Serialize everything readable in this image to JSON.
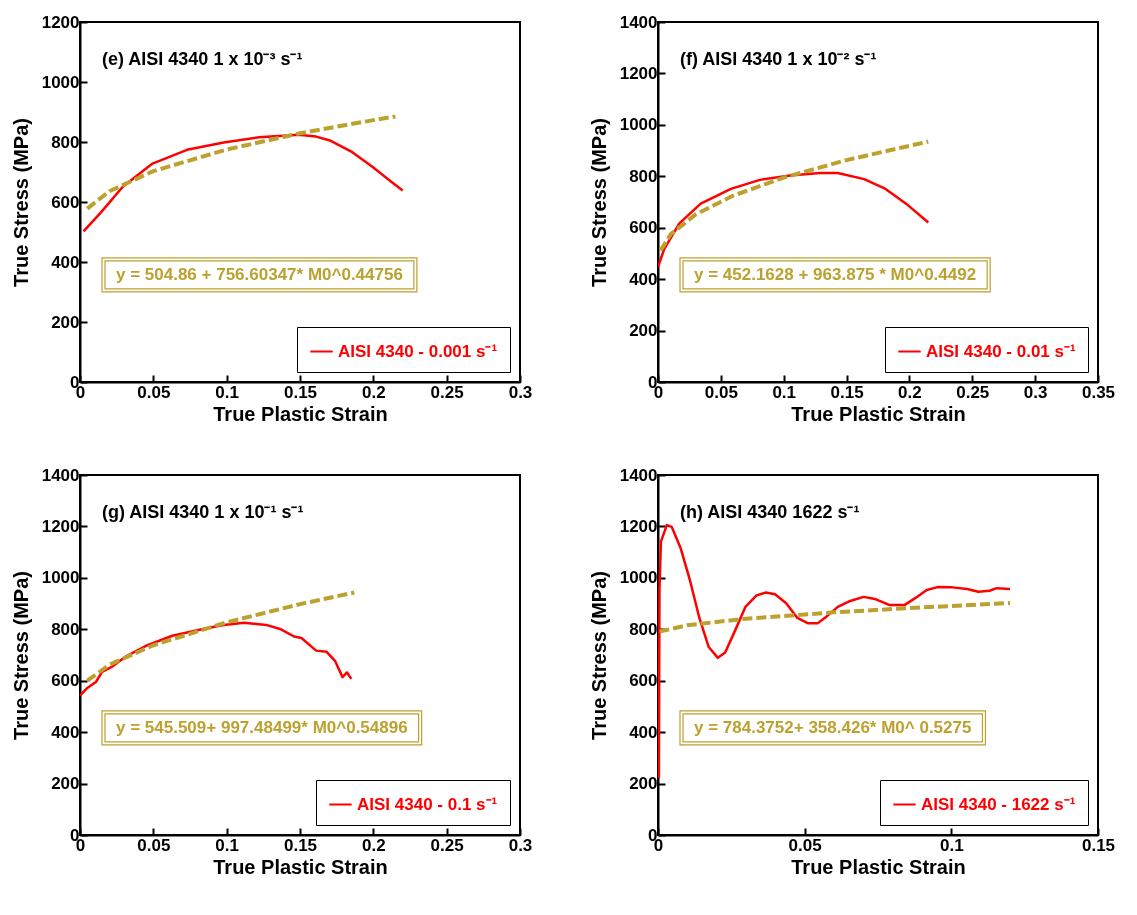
{
  "chart_data": [
    {
      "type": "line",
      "title": "(e)   AISI 4340  1 x 10⁻³ s⁻¹",
      "xlabel": "True Plastic Strain",
      "ylabel": "True Stress (MPa)",
      "xlim": [
        0,
        0.3
      ],
      "xticks": [
        0,
        0.05,
        0.1,
        0.15,
        0.2,
        0.25,
        0.3
      ],
      "ylim": [
        0,
        1200
      ],
      "yticks": [
        0,
        200,
        400,
        600,
        800,
        1000,
        1200
      ],
      "legend": "bottom right",
      "annotations": [
        "y = 504.86 + 756.60347* M0^0.44756"
      ],
      "series": [
        {
          "name": "AISI 4340 - 0.001 s⁻¹",
          "color": "#ff0000",
          "line_style": "solid",
          "x": [
            0.0024,
            0.0146,
            0.029,
            0.049,
            0.073,
            0.098,
            0.122,
            0.149,
            0.161,
            0.171,
            0.185,
            0.2,
            0.212,
            0.22
          ],
          "values": [
            502,
            567,
            650,
            727,
            774,
            798,
            816,
            824,
            818,
            804,
            768,
            715,
            668,
            638
          ]
        },
        {
          "color": "#bca12f",
          "line_style": "dashed",
          "x": [
            0.005,
            0.02,
            0.05,
            0.1,
            0.15,
            0.2,
            0.215
          ],
          "values": [
            578,
            636,
            703,
            775,
            829,
            873,
            885
          ]
        }
      ]
    },
    {
      "type": "line",
      "title": "(f)   AISI 4340  1 x 10⁻² s⁻¹",
      "xlabel": "True Plastic Strain",
      "ylabel": "True Stress (MPa)",
      "xlim": [
        0,
        0.35
      ],
      "xticks": [
        0,
        0.05,
        0.1,
        0.15,
        0.2,
        0.25,
        0.3,
        0.35
      ],
      "ylim": [
        0,
        1400
      ],
      "yticks": [
        0,
        200,
        400,
        600,
        800,
        1000,
        1200,
        1400
      ],
      "legend": "bottom right",
      "annotations": [
        "y = 452.1628 + 963.875 * M0^0.4492"
      ],
      "series": [
        {
          "name": "AISI 4340 - 0.01 s⁻¹",
          "color": "#ff0000",
          "line_style": "solid",
          "x": [
            0,
            0.005,
            0.017,
            0.034,
            0.058,
            0.081,
            0.105,
            0.129,
            0.143,
            0.164,
            0.181,
            0.199,
            0.215
          ],
          "values": [
            447,
            518,
            617,
            694,
            751,
            786,
            803,
            813,
            813,
            789,
            751,
            687,
            620
          ]
        },
        {
          "color": "#bca12f",
          "line_style": "dashed",
          "x": [
            0.002,
            0.01,
            0.03,
            0.06,
            0.1,
            0.15,
            0.215
          ],
          "values": [
            511,
            574,
            652,
            725,
            795,
            863,
            935
          ]
        }
      ]
    },
    {
      "type": "line",
      "title": "(g)   AISI 4340   1 x 10⁻¹ s⁻¹",
      "xlabel": "True Plastic Strain",
      "ylabel": "True Stress (MPa)",
      "xlim": [
        0,
        0.3
      ],
      "xticks": [
        0,
        0.05,
        0.1,
        0.15,
        0.2,
        0.25,
        0.3
      ],
      "ylim": [
        0,
        1400
      ],
      "yticks": [
        0,
        200,
        400,
        600,
        800,
        1000,
        1200,
        1400
      ],
      "legend": "bottom right",
      "annotations": [
        "y = 545.509+ 997.48499* M0^0.54896"
      ],
      "series": [
        {
          "name": "AISI 4340 - 0.1 s⁻¹",
          "color": "#ff0000",
          "line_style": "solid",
          "x": [
            0,
            0.005,
            0.011,
            0.015,
            0.022,
            0.032,
            0.046,
            0.063,
            0.083,
            0.098,
            0.112,
            0.127,
            0.137,
            0.146,
            0.151,
            0.161,
            0.168,
            0.174,
            0.179,
            0.182,
            0.185
          ],
          "values": [
            542,
            572,
            596,
            634,
            655,
            697,
            738,
            775,
            800,
            817,
            825,
            817,
            800,
            772,
            766,
            717,
            713,
            676,
            614,
            632,
            607
          ]
        },
        {
          "color": "#bca12f",
          "line_style": "dashed",
          "x": [
            0.005,
            0.02,
            0.05,
            0.1,
            0.15,
            0.187
          ],
          "values": [
            600,
            662,
            738,
            827,
            898,
            943
          ]
        }
      ]
    },
    {
      "type": "line",
      "title": "(h)   AISI 4340   1622 s⁻¹",
      "xlabel": "True Plastic Strain",
      "ylabel": "True Stress (MPa)",
      "xlim": [
        0,
        0.15
      ],
      "xticks": [
        0,
        0.05,
        0.1,
        0.15
      ],
      "ylim": [
        0,
        1400
      ],
      "yticks": [
        0,
        200,
        400,
        600,
        800,
        1000,
        1200,
        1400
      ],
      "legend": "bottom right",
      "annotations": [
        "y = 784.3752+ 358.426* M0^ 0.5275"
      ],
      "series": [
        {
          "name": "AISI 4340 - 1622 s⁻¹",
          "color": "#ff0000",
          "line_style": "solid",
          "x": [
            0.0003,
            0.0005,
            0.001,
            0.003,
            0.0047,
            0.0078,
            0.011,
            0.0141,
            0.0173,
            0.0204,
            0.0229,
            0.026,
            0.0298,
            0.0336,
            0.0368,
            0.0399,
            0.0437,
            0.0475,
            0.0512,
            0.0544,
            0.0576,
            0.0613,
            0.065,
            0.0701,
            0.0739,
            0.079,
            0.084,
            0.0878,
            0.0916,
            0.0953,
            0.1004,
            0.1054,
            0.1092,
            0.113,
            0.1155,
            0.12
          ],
          "values": [
            222,
            958,
            1141,
            1205,
            1198,
            1113,
            986,
            844,
            731,
            689,
            710,
            788,
            887,
            932,
            943,
            936,
            901,
            844,
            823,
            823,
            851,
            887,
            908,
            926,
            918,
            894,
            894,
            922,
            953,
            964,
            963,
            957,
            946,
            950,
            960,
            957
          ]
        },
        {
          "color": "#bca12f",
          "line_style": "dashed",
          "x": [
            0.0005,
            0.01,
            0.03,
            0.06,
            0.09,
            0.12
          ],
          "values": [
            791,
            816,
            841,
            866,
            885,
            902
          ]
        }
      ]
    }
  ]
}
